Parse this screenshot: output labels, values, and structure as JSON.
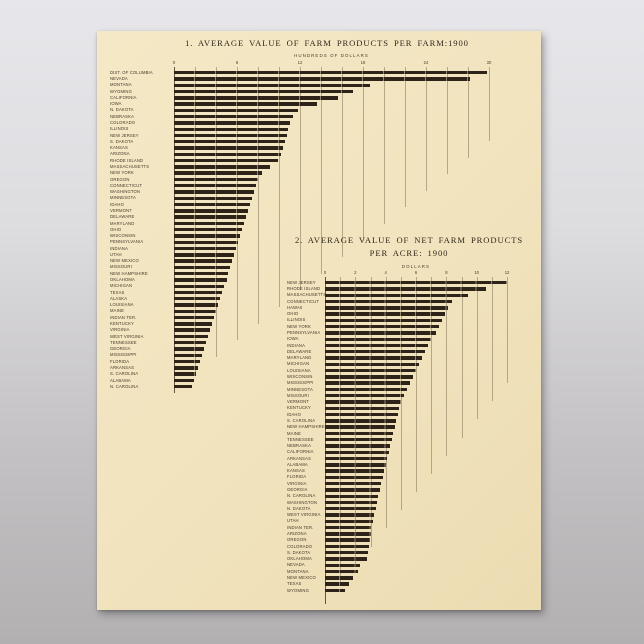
{
  "poster": {
    "background_color": "#f1e3bd",
    "bar_color": "#2d2318",
    "grid_color": "#7a6a50",
    "text_color": "#453727",
    "title_color": "#32281d"
  },
  "chart_data": [
    {
      "type": "bar",
      "orientation": "horizontal",
      "title": "1. AVERAGE VALUE OF FARM PRODUCTS PER FARM:1900",
      "axis_label": "HUNDREDS OF DOLLARS",
      "ticks": [
        0,
        6,
        12,
        18,
        24,
        30
      ],
      "xlim": [
        0,
        30
      ],
      "grid_step": 2,
      "legend": "none",
      "categories": [
        "DIST. OF COLUMBIA",
        "NEVADA",
        "MONTANA",
        "WYOMING",
        "CALIFORNIA",
        "IOWA",
        "N. DAKOTA",
        "NEBRASKA",
        "COLORADO",
        "ILLINOIS",
        "NEW JERSEY",
        "S. DAKOTA",
        "KANSAS",
        "ARIZONA",
        "RHODE ISLAND",
        "MASSACHUSETTS",
        "NEW YORK",
        "OREGON",
        "CONNECTICUT",
        "WASHINGTON",
        "MINNESOTA",
        "IDAHO",
        "VERMONT",
        "DELAWARE",
        "MARYLAND",
        "OHIO",
        "WISCONSIN",
        "PENNSYLVANIA",
        "INDIANA",
        "UTAH",
        "NEW MEXICO",
        "MISSOURI",
        "NEW HAMPSHIRE",
        "OKLAHOMA",
        "MICHIGAN",
        "TEXAS",
        "ALASKA",
        "LOUISIANA",
        "MAINE",
        "INDIAN TER.",
        "KENTUCKY",
        "VIRGINIA",
        "WEST VIRGINIA",
        "TENNESSEE",
        "GEORGIA",
        "MISSISSIPPI",
        "FLORIDA",
        "ARKANSAS",
        "S. CAROLINA",
        "ALABAMA",
        "N. CAROLINA"
      ],
      "values": [
        29.8,
        28.2,
        18.7,
        17.0,
        15.6,
        13.6,
        11.8,
        11.3,
        11.0,
        10.9,
        10.8,
        10.6,
        10.4,
        10.2,
        9.9,
        9.1,
        8.4,
        8.0,
        7.8,
        7.6,
        7.4,
        7.2,
        7.0,
        6.9,
        6.7,
        6.5,
        6.3,
        6.1,
        5.9,
        5.7,
        5.5,
        5.3,
        5.1,
        5.0,
        4.8,
        4.6,
        4.4,
        4.2,
        4.0,
        3.8,
        3.6,
        3.4,
        3.2,
        3.0,
        2.9,
        2.7,
        2.5,
        2.3,
        2.1,
        1.9,
        1.7
      ]
    },
    {
      "type": "bar",
      "orientation": "horizontal",
      "title": "2. AVERAGE VALUE OF NET FARM PRODUCTS",
      "title_line2": "PER ACRE: 1900",
      "axis_label": "DOLLARS",
      "ticks": [
        0,
        2,
        4,
        6,
        8,
        10,
        12
      ],
      "xlim": [
        0,
        12
      ],
      "grid_step": 1,
      "legend": "none",
      "categories": [
        "NEW JERSEY",
        "RHODE ISLAND",
        "MASSACHUSETTS",
        "CONNECTICUT",
        "HAWAII",
        "OHIO",
        "ILLINOIS",
        "NEW YORK",
        "PENNSYLVANIA",
        "IOWA",
        "INDIANA",
        "DELAWARE",
        "MARYLAND",
        "MICHIGAN",
        "LOUISIANA",
        "WISCONSIN",
        "MISSISSIPPI",
        "MINNESOTA",
        "MISSOURI",
        "VERMONT",
        "KENTUCKY",
        "IDAHO",
        "S. CAROLINA",
        "NEW HAMPSHIRE",
        "MAINE",
        "TENNESSEE",
        "NEBRASKA",
        "CALIFORNIA",
        "ARKANSAS",
        "ALABAMA",
        "KANSAS",
        "FLORIDA",
        "VIRGINIA",
        "GEORGIA",
        "N. CAROLINA",
        "WASHINGTON",
        "N. DAKOTA",
        "WEST VIRGINIA",
        "UTAH",
        "INDIAN TER.",
        "ARIZONA",
        "OREGON",
        "COLORADO",
        "S. DAKOTA",
        "OKLAHOMA",
        "NEVADA",
        "MONTANA",
        "NEW MEXICO",
        "TEXAS",
        "WYOMING"
      ],
      "values": [
        12.0,
        10.6,
        9.4,
        8.4,
        8.1,
        7.9,
        7.7,
        7.5,
        7.3,
        7.0,
        6.8,
        6.6,
        6.4,
        6.2,
        6.0,
        5.8,
        5.6,
        5.4,
        5.2,
        5.0,
        4.9,
        4.8,
        4.7,
        4.6,
        4.5,
        4.4,
        4.3,
        4.2,
        4.1,
        4.0,
        3.9,
        3.8,
        3.7,
        3.6,
        3.5,
        3.45,
        3.35,
        3.25,
        3.15,
        3.05,
        3.0,
        2.95,
        2.9,
        2.85,
        2.8,
        2.3,
        2.2,
        1.85,
        1.6,
        1.3
      ]
    }
  ]
}
